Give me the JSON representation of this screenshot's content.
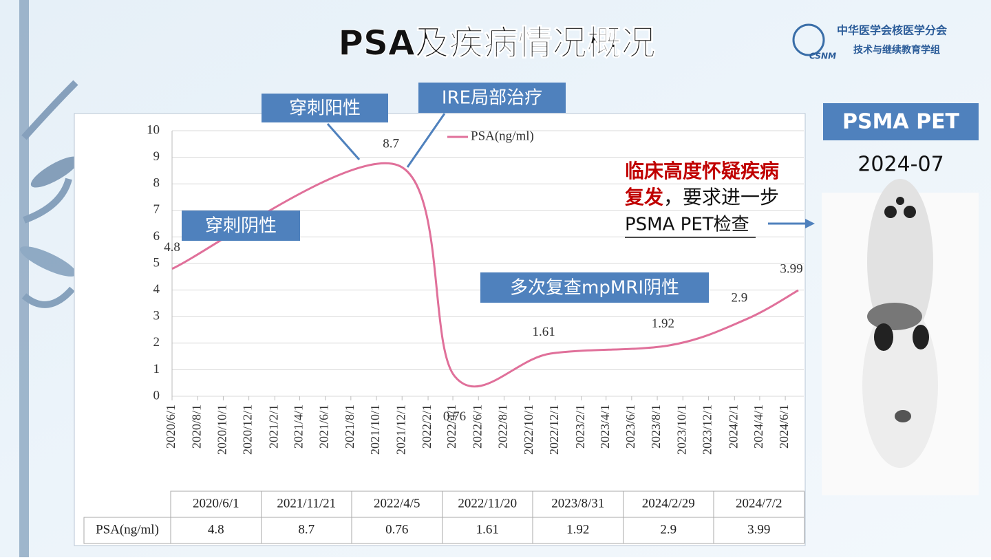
{
  "slide": {
    "title": "PSA及疾病情况概况",
    "logo": {
      "mark": "CSNM",
      "line1": "中华医学会核医学分会",
      "line2": "技术与继续教育学组"
    },
    "annotations": [
      "穿刺阳性",
      "IRE局部治疗",
      "穿刺阴性",
      "多次复查mpMRI阴性"
    ],
    "panel": {
      "title": "PSMA PET",
      "date": "2024-07",
      "note_red": "临床高度怀疑疾病",
      "note_red2": "复发",
      "note_black": "，要求进一步",
      "note_line3": "PSMA PET检查"
    }
  },
  "chart_data": {
    "type": "line",
    "x": [
      "2020/6/1",
      "2021/11/21",
      "2022/4/5",
      "2022/11/20",
      "2023/8/31",
      "2024/2/29",
      "2024/7/2"
    ],
    "series": [
      {
        "name": "PSA(ng/ml)",
        "color": "#e0709a",
        "values": [
          4.8,
          8.7,
          0.76,
          1.61,
          1.92,
          2.9,
          3.99
        ]
      }
    ],
    "xlim": [
      "2020/6/1",
      "2024/7/2"
    ],
    "xticks": [
      "2020/6/1",
      "2020/8/1",
      "2020/10/1",
      "2020/12/1",
      "2021/2/1",
      "2021/4/1",
      "2021/6/1",
      "2021/8/1",
      "2021/10/1",
      "2021/12/1",
      "2022/2/1",
      "2022/4/1",
      "2022/6/1",
      "2022/8/1",
      "2022/10/1",
      "2022/12/1",
      "2023/2/1",
      "2023/4/1",
      "2023/6/1",
      "2023/8/1",
      "2023/10/1",
      "2023/12/1",
      "2024/2/1",
      "2024/4/1",
      "2024/6/1"
    ],
    "ylim": [
      0,
      10
    ],
    "yticks": [
      0,
      1,
      2,
      3,
      4,
      5,
      6,
      7,
      8,
      9,
      10
    ],
    "grid": true,
    "legend": "top"
  }
}
